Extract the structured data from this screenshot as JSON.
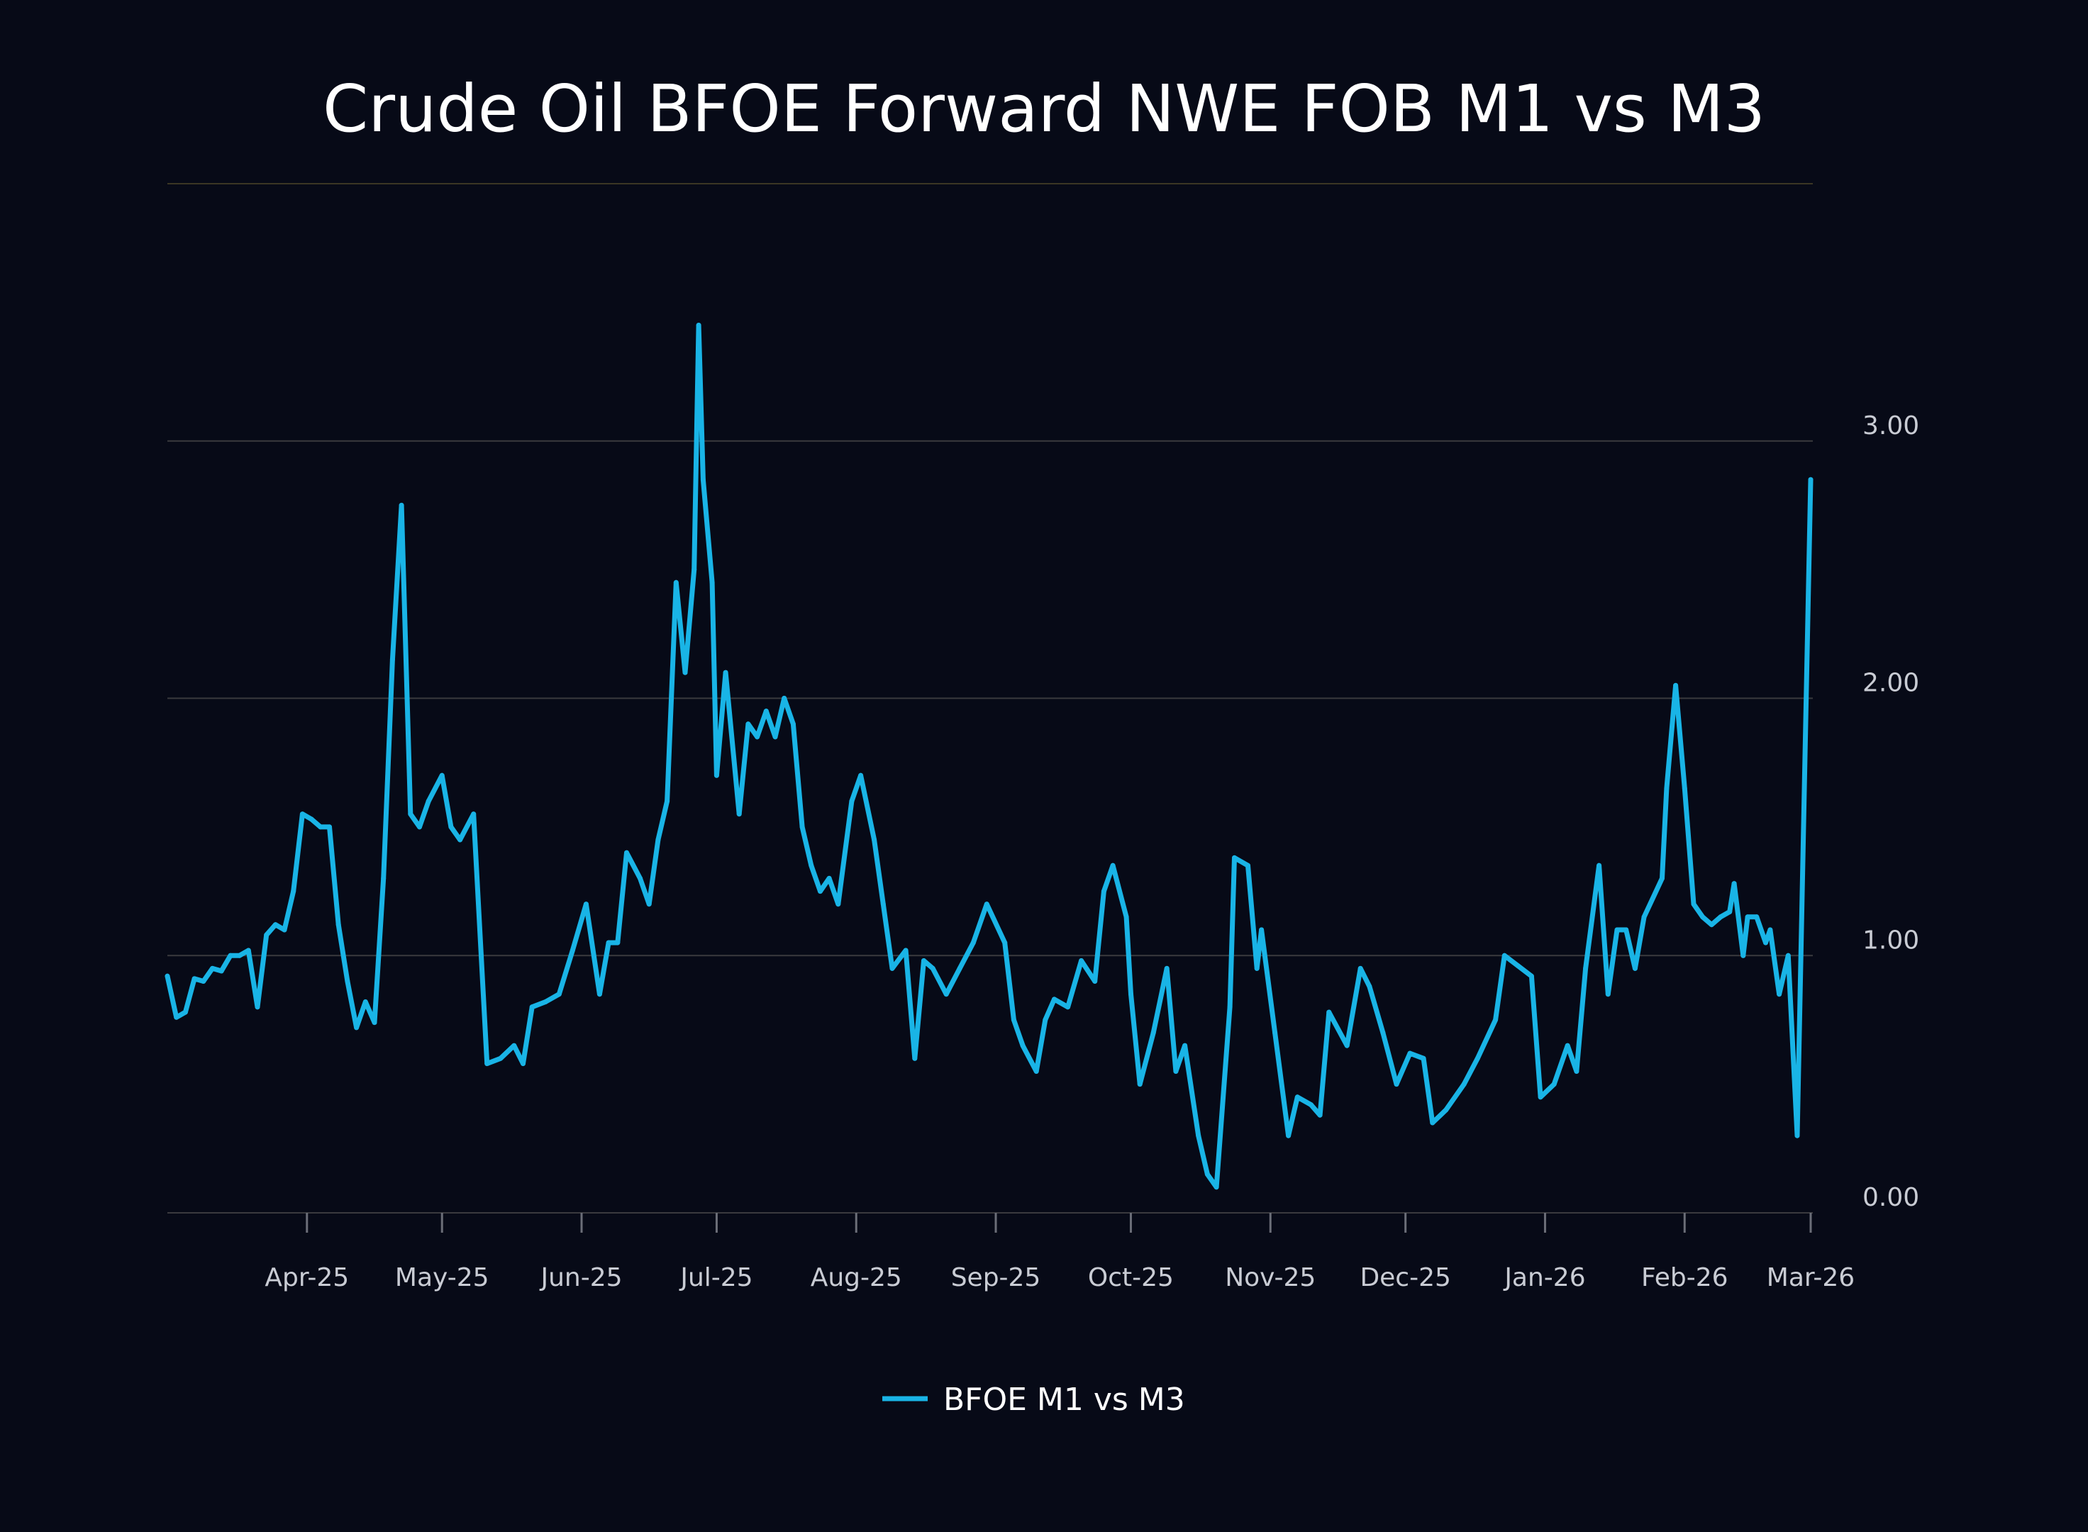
{
  "chart_data": {
    "type": "line",
    "title": "Crude Oil BFOE Forward NWE FOB M1 vs M3",
    "xlabel": "",
    "ylabel": "",
    "ylim": [
      0,
      4
    ],
    "yticks": [
      "0.00",
      "1.00",
      "2.00",
      "3.00"
    ],
    "x_ticks": [
      "Apr-25",
      "May-25",
      "Jun-25",
      "Jul-25",
      "Aug-25",
      "Sep-25",
      "Oct-25",
      "Nov-25",
      "Dec-25",
      "Jan-26",
      "Feb-26",
      "Mar-26"
    ],
    "x_range": [
      "2025-03-01",
      "2026-03-01"
    ],
    "grid": true,
    "legend": "bottom-center",
    "series": [
      {
        "name": "BFOE M1 vs M3",
        "color": "#19b4e6",
        "points": [
          [
            "2025-03-01",
            0.92
          ],
          [
            "2025-03-03",
            0.76
          ],
          [
            "2025-03-05",
            0.78
          ],
          [
            "2025-03-07",
            0.91
          ],
          [
            "2025-03-09",
            0.9
          ],
          [
            "2025-03-11",
            0.95
          ],
          [
            "2025-03-13",
            0.94
          ],
          [
            "2025-03-15",
            1.0
          ],
          [
            "2025-03-17",
            1.0
          ],
          [
            "2025-03-19",
            1.02
          ],
          [
            "2025-03-21",
            0.8
          ],
          [
            "2025-03-23",
            1.08
          ],
          [
            "2025-03-25",
            1.12
          ],
          [
            "2025-03-27",
            1.1
          ],
          [
            "2025-03-29",
            1.25
          ],
          [
            "2025-03-31",
            1.55
          ],
          [
            "2025-04-02",
            1.53
          ],
          [
            "2025-04-04",
            1.5
          ],
          [
            "2025-04-06",
            1.5
          ],
          [
            "2025-04-08",
            1.12
          ],
          [
            "2025-04-10",
            0.9
          ],
          [
            "2025-04-12",
            0.72
          ],
          [
            "2025-04-14",
            0.82
          ],
          [
            "2025-04-16",
            0.74
          ],
          [
            "2025-04-18",
            1.3
          ],
          [
            "2025-04-20",
            2.15
          ],
          [
            "2025-04-22",
            2.75
          ],
          [
            "2025-04-24",
            1.55
          ],
          [
            "2025-04-26",
            1.5
          ],
          [
            "2025-04-28",
            1.6
          ],
          [
            "2025-05-01",
            1.7
          ],
          [
            "2025-05-03",
            1.5
          ],
          [
            "2025-05-05",
            1.45
          ],
          [
            "2025-05-08",
            1.55
          ],
          [
            "2025-05-11",
            0.58
          ],
          [
            "2025-05-14",
            0.6
          ],
          [
            "2025-05-17",
            0.65
          ],
          [
            "2025-05-19",
            0.58
          ],
          [
            "2025-05-21",
            0.8
          ],
          [
            "2025-05-24",
            0.82
          ],
          [
            "2025-05-27",
            0.85
          ],
          [
            "2025-05-30",
            1.02
          ],
          [
            "2025-06-02",
            1.2
          ],
          [
            "2025-06-05",
            0.85
          ],
          [
            "2025-06-07",
            1.05
          ],
          [
            "2025-06-09",
            1.05
          ],
          [
            "2025-06-11",
            1.4
          ],
          [
            "2025-06-14",
            1.3
          ],
          [
            "2025-06-16",
            1.2
          ],
          [
            "2025-06-18",
            1.45
          ],
          [
            "2025-06-20",
            1.6
          ],
          [
            "2025-06-22",
            2.45
          ],
          [
            "2025-06-24",
            2.1
          ],
          [
            "2025-06-26",
            2.5
          ],
          [
            "2025-06-27",
            3.45
          ],
          [
            "2025-06-28",
            2.85
          ],
          [
            "2025-06-30",
            2.45
          ],
          [
            "2025-07-01",
            1.7
          ],
          [
            "2025-07-03",
            2.1
          ],
          [
            "2025-07-06",
            1.55
          ],
          [
            "2025-07-08",
            1.9
          ],
          [
            "2025-07-10",
            1.85
          ],
          [
            "2025-07-12",
            1.95
          ],
          [
            "2025-07-14",
            1.85
          ],
          [
            "2025-07-16",
            2.0
          ],
          [
            "2025-07-18",
            1.9
          ],
          [
            "2025-07-20",
            1.5
          ],
          [
            "2025-07-22",
            1.35
          ],
          [
            "2025-07-24",
            1.25
          ],
          [
            "2025-07-26",
            1.3
          ],
          [
            "2025-07-28",
            1.2
          ],
          [
            "2025-07-31",
            1.6
          ],
          [
            "2025-08-02",
            1.7
          ],
          [
            "2025-08-05",
            1.45
          ],
          [
            "2025-08-07",
            1.2
          ],
          [
            "2025-08-09",
            0.95
          ],
          [
            "2025-08-12",
            1.02
          ],
          [
            "2025-08-14",
            0.6
          ],
          [
            "2025-08-16",
            0.98
          ],
          [
            "2025-08-18",
            0.95
          ],
          [
            "2025-08-21",
            0.85
          ],
          [
            "2025-08-24",
            0.95
          ],
          [
            "2025-08-27",
            1.05
          ],
          [
            "2025-08-30",
            1.2
          ],
          [
            "2025-09-03",
            1.05
          ],
          [
            "2025-09-05",
            0.75
          ],
          [
            "2025-09-07",
            0.65
          ],
          [
            "2025-09-10",
            0.55
          ],
          [
            "2025-09-12",
            0.75
          ],
          [
            "2025-09-14",
            0.83
          ],
          [
            "2025-09-17",
            0.8
          ],
          [
            "2025-09-20",
            0.98
          ],
          [
            "2025-09-23",
            0.9
          ],
          [
            "2025-09-25",
            1.25
          ],
          [
            "2025-09-27",
            1.35
          ],
          [
            "2025-09-30",
            1.15
          ],
          [
            "2025-10-01",
            0.85
          ],
          [
            "2025-10-03",
            0.5
          ],
          [
            "2025-10-06",
            0.7
          ],
          [
            "2025-10-09",
            0.95
          ],
          [
            "2025-10-11",
            0.55
          ],
          [
            "2025-10-13",
            0.65
          ],
          [
            "2025-10-16",
            0.3
          ],
          [
            "2025-10-18",
            0.15
          ],
          [
            "2025-10-20",
            0.1
          ],
          [
            "2025-10-23",
            0.8
          ],
          [
            "2025-10-24",
            1.38
          ],
          [
            "2025-10-27",
            1.35
          ],
          [
            "2025-10-29",
            0.95
          ],
          [
            "2025-10-30",
            1.1
          ],
          [
            "2025-11-02",
            0.7
          ],
          [
            "2025-11-05",
            0.3
          ],
          [
            "2025-11-07",
            0.45
          ],
          [
            "2025-11-10",
            0.42
          ],
          [
            "2025-11-12",
            0.38
          ],
          [
            "2025-11-14",
            0.78
          ],
          [
            "2025-11-18",
            0.65
          ],
          [
            "2025-11-21",
            0.95
          ],
          [
            "2025-11-23",
            0.88
          ],
          [
            "2025-11-26",
            0.7
          ],
          [
            "2025-11-29",
            0.5
          ],
          [
            "2025-12-02",
            0.62
          ],
          [
            "2025-12-05",
            0.6
          ],
          [
            "2025-12-07",
            0.35
          ],
          [
            "2025-12-10",
            0.4
          ],
          [
            "2025-12-14",
            0.5
          ],
          [
            "2025-12-17",
            0.6
          ],
          [
            "2025-12-21",
            0.75
          ],
          [
            "2025-12-23",
            1.0
          ],
          [
            "2025-12-26",
            0.96
          ],
          [
            "2025-12-29",
            0.92
          ],
          [
            "2025-12-31",
            0.45
          ],
          [
            "2026-01-03",
            0.5
          ],
          [
            "2026-01-06",
            0.65
          ],
          [
            "2026-01-08",
            0.55
          ],
          [
            "2026-01-10",
            0.95
          ],
          [
            "2026-01-13",
            1.35
          ],
          [
            "2026-01-15",
            0.85
          ],
          [
            "2026-01-17",
            1.1
          ],
          [
            "2026-01-19",
            1.1
          ],
          [
            "2026-01-21",
            0.95
          ],
          [
            "2026-01-23",
            1.15
          ],
          [
            "2026-01-27",
            1.3
          ],
          [
            "2026-01-28",
            1.65
          ],
          [
            "2026-01-30",
            2.05
          ],
          [
            "2026-02-01",
            1.65
          ],
          [
            "2026-02-03",
            1.2
          ],
          [
            "2026-02-05",
            1.15
          ],
          [
            "2026-02-07",
            1.12
          ],
          [
            "2026-02-09",
            1.15
          ],
          [
            "2026-02-11",
            1.17
          ],
          [
            "2026-02-12",
            1.28
          ],
          [
            "2026-02-14",
            1.0
          ],
          [
            "2026-02-15",
            1.15
          ],
          [
            "2026-02-17",
            1.15
          ],
          [
            "2026-02-19",
            1.05
          ],
          [
            "2026-02-20",
            1.1
          ],
          [
            "2026-02-22",
            0.85
          ],
          [
            "2026-02-24",
            1.0
          ],
          [
            "2026-02-26",
            0.3
          ],
          [
            "2026-03-01",
            2.85
          ]
        ]
      }
    ]
  }
}
